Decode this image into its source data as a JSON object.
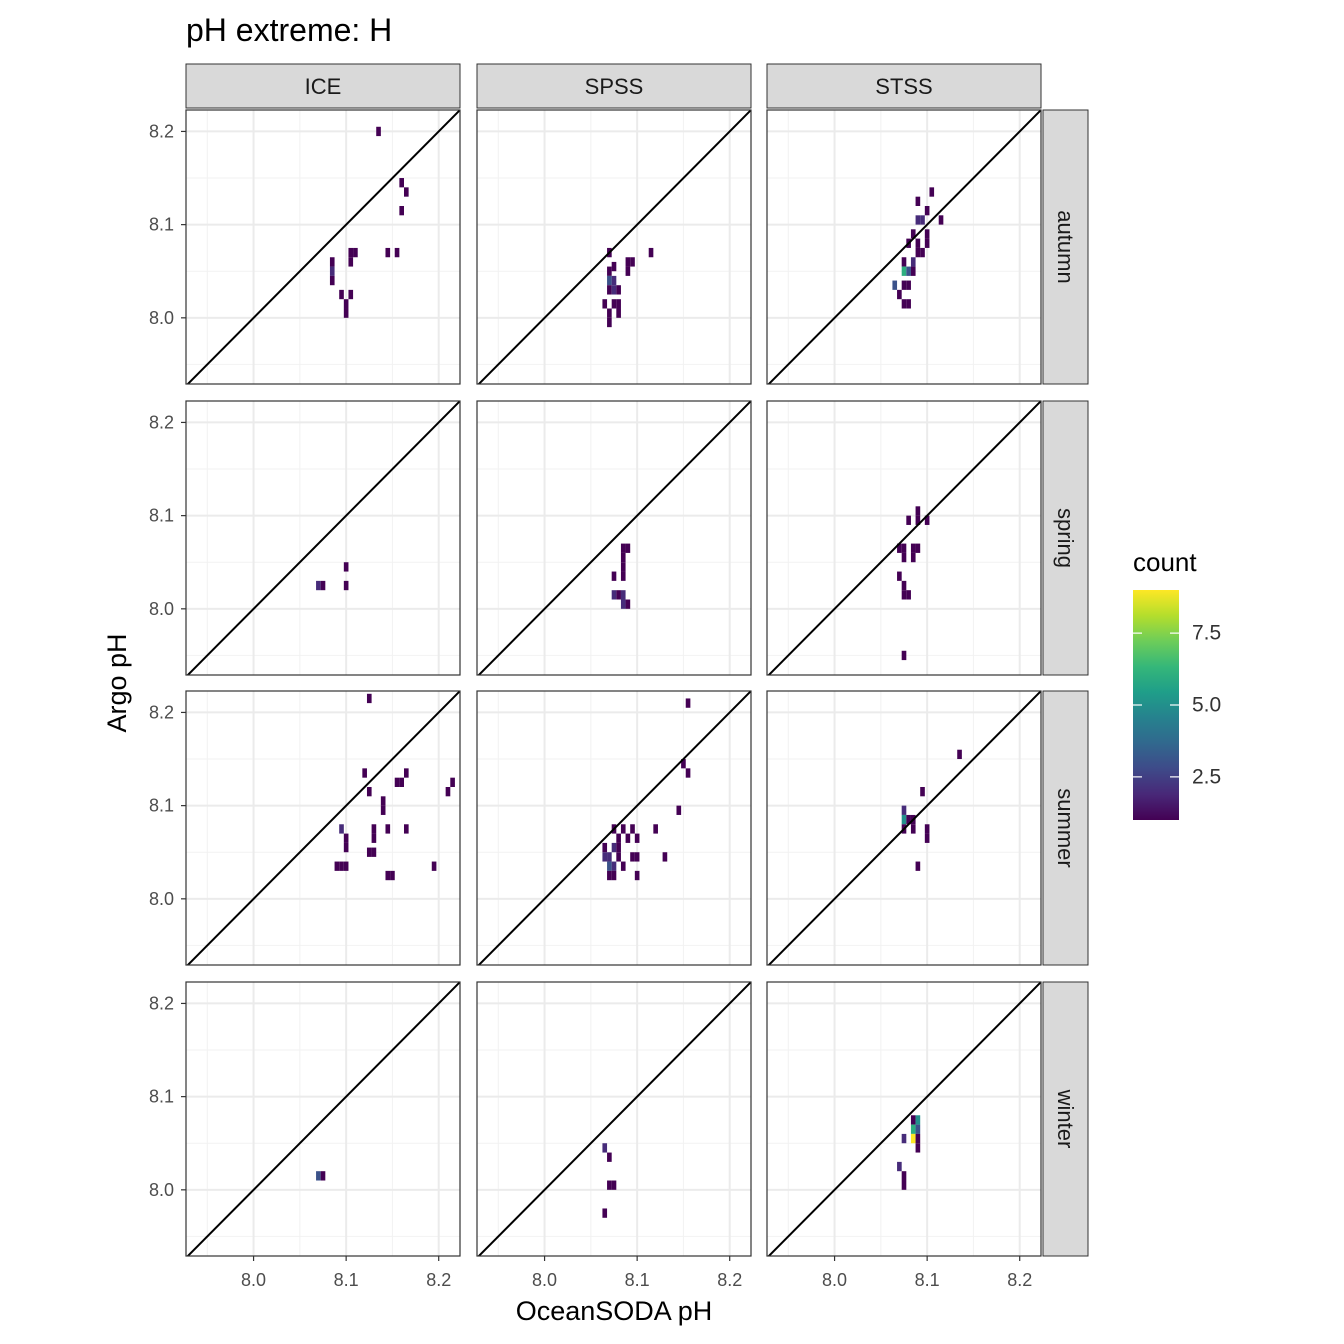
{
  "chart_data": {
    "type": "heatmap",
    "title": "pH extreme: H",
    "xlabel": "OceanSODA pH",
    "ylabel": "Argo pH",
    "xlim": [
      7.927,
      8.223
    ],
    "ylim": [
      7.929,
      8.223
    ],
    "x_ticks": [
      8.0,
      8.1,
      8.2
    ],
    "y_ticks": [
      8.0,
      8.1,
      8.2
    ],
    "x_tick_labels": [
      "8.0",
      "8.1",
      "8.2"
    ],
    "y_tick_labels": [
      "8.0",
      "8.1",
      "8.2"
    ],
    "bin_width": [
      0.005,
      0.01
    ],
    "reference_line": "y = x",
    "columns": [
      "ICE",
      "SPSS",
      "STSS"
    ],
    "rows": [
      "autumn",
      "spring",
      "summer",
      "winter"
    ],
    "legend": {
      "title": "count",
      "min": 1,
      "max": 9,
      "ticks": [
        2.5,
        5.0,
        7.5
      ],
      "tick_labels": [
        "2.5",
        "5.0",
        "7.5"
      ],
      "palette": [
        "#440154",
        "#482878",
        "#3E4A89",
        "#31688E",
        "#26828E",
        "#1F9E89",
        "#35B779",
        "#6DCD59",
        "#B4DE2C",
        "#FDE725"
      ]
    },
    "panels": [
      {
        "column": "ICE",
        "row": "autumn",
        "cells": [
          {
            "x": 8.135,
            "y": 8.2,
            "count": 1
          },
          {
            "x": 8.16,
            "y": 8.145,
            "count": 1
          },
          {
            "x": 8.165,
            "y": 8.135,
            "count": 1
          },
          {
            "x": 8.16,
            "y": 8.115,
            "count": 1
          },
          {
            "x": 8.105,
            "y": 8.07,
            "count": 1
          },
          {
            "x": 8.11,
            "y": 8.07,
            "count": 1
          },
          {
            "x": 8.145,
            "y": 8.07,
            "count": 1
          },
          {
            "x": 8.155,
            "y": 8.07,
            "count": 1
          },
          {
            "x": 8.105,
            "y": 8.06,
            "count": 1
          },
          {
            "x": 8.085,
            "y": 8.06,
            "count": 1
          },
          {
            "x": 8.085,
            "y": 8.05,
            "count": 2
          },
          {
            "x": 8.085,
            "y": 8.04,
            "count": 1
          },
          {
            "x": 8.095,
            "y": 8.025,
            "count": 1
          },
          {
            "x": 8.105,
            "y": 8.025,
            "count": 1
          },
          {
            "x": 8.1,
            "y": 8.015,
            "count": 1
          },
          {
            "x": 8.1,
            "y": 8.005,
            "count": 1
          }
        ]
      },
      {
        "column": "SPSS",
        "row": "autumn",
        "cells": [
          {
            "x": 8.07,
            "y": 8.07,
            "count": 1
          },
          {
            "x": 8.115,
            "y": 8.07,
            "count": 1
          },
          {
            "x": 8.09,
            "y": 8.06,
            "count": 1
          },
          {
            "x": 8.095,
            "y": 8.06,
            "count": 1
          },
          {
            "x": 8.075,
            "y": 8.055,
            "count": 1
          },
          {
            "x": 8.07,
            "y": 8.05,
            "count": 1
          },
          {
            "x": 8.09,
            "y": 8.05,
            "count": 1
          },
          {
            "x": 8.07,
            "y": 8.04,
            "count": 3
          },
          {
            "x": 8.075,
            "y": 8.04,
            "count": 2
          },
          {
            "x": 8.07,
            "y": 8.03,
            "count": 1
          },
          {
            "x": 8.075,
            "y": 8.03,
            "count": 2
          },
          {
            "x": 8.08,
            "y": 8.03,
            "count": 1
          },
          {
            "x": 8.065,
            "y": 8.015,
            "count": 1
          },
          {
            "x": 8.075,
            "y": 8.015,
            "count": 1
          },
          {
            "x": 8.08,
            "y": 8.015,
            "count": 1
          },
          {
            "x": 8.07,
            "y": 8.005,
            "count": 1
          },
          {
            "x": 8.08,
            "y": 8.005,
            "count": 1
          },
          {
            "x": 8.07,
            "y": 7.995,
            "count": 1
          }
        ]
      },
      {
        "column": "STSS",
        "row": "autumn",
        "cells": [
          {
            "x": 8.105,
            "y": 8.135,
            "count": 1
          },
          {
            "x": 8.09,
            "y": 8.125,
            "count": 1
          },
          {
            "x": 8.1,
            "y": 8.115,
            "count": 1
          },
          {
            "x": 8.09,
            "y": 8.105,
            "count": 2
          },
          {
            "x": 8.095,
            "y": 8.105,
            "count": 2
          },
          {
            "x": 8.115,
            "y": 8.105,
            "count": 1
          },
          {
            "x": 8.085,
            "y": 8.09,
            "count": 1
          },
          {
            "x": 8.1,
            "y": 8.09,
            "count": 1
          },
          {
            "x": 8.08,
            "y": 8.08,
            "count": 1
          },
          {
            "x": 8.09,
            "y": 8.08,
            "count": 1
          },
          {
            "x": 8.1,
            "y": 8.08,
            "count": 1
          },
          {
            "x": 8.09,
            "y": 8.07,
            "count": 1
          },
          {
            "x": 8.095,
            "y": 8.07,
            "count": 1
          },
          {
            "x": 8.075,
            "y": 8.06,
            "count": 1
          },
          {
            "x": 8.085,
            "y": 8.06,
            "count": 2
          },
          {
            "x": 8.075,
            "y": 8.05,
            "count": 6
          },
          {
            "x": 8.08,
            "y": 8.05,
            "count": 3
          },
          {
            "x": 8.085,
            "y": 8.05,
            "count": 1
          },
          {
            "x": 8.065,
            "y": 8.035,
            "count": 3
          },
          {
            "x": 8.075,
            "y": 8.035,
            "count": 1
          },
          {
            "x": 8.08,
            "y": 8.035,
            "count": 1
          },
          {
            "x": 8.07,
            "y": 8.025,
            "count": 1
          },
          {
            "x": 8.075,
            "y": 8.015,
            "count": 1
          },
          {
            "x": 8.08,
            "y": 8.015,
            "count": 1
          }
        ]
      },
      {
        "column": "ICE",
        "row": "spring",
        "cells": [
          {
            "x": 8.1,
            "y": 8.045,
            "count": 1
          },
          {
            "x": 8.07,
            "y": 8.025,
            "count": 2
          },
          {
            "x": 8.075,
            "y": 8.025,
            "count": 1
          },
          {
            "x": 8.1,
            "y": 8.025,
            "count": 1
          }
        ]
      },
      {
        "column": "SPSS",
        "row": "spring",
        "cells": [
          {
            "x": 8.085,
            "y": 8.065,
            "count": 1
          },
          {
            "x": 8.09,
            "y": 8.065,
            "count": 1
          },
          {
            "x": 8.085,
            "y": 8.055,
            "count": 1
          },
          {
            "x": 8.085,
            "y": 8.045,
            "count": 1
          },
          {
            "x": 8.075,
            "y": 8.035,
            "count": 1
          },
          {
            "x": 8.085,
            "y": 8.035,
            "count": 1
          },
          {
            "x": 8.075,
            "y": 8.015,
            "count": 2
          },
          {
            "x": 8.08,
            "y": 8.015,
            "count": 1
          },
          {
            "x": 8.085,
            "y": 8.015,
            "count": 2
          },
          {
            "x": 8.085,
            "y": 8.005,
            "count": 2
          },
          {
            "x": 8.09,
            "y": 8.005,
            "count": 1
          }
        ]
      },
      {
        "column": "STSS",
        "row": "spring",
        "cells": [
          {
            "x": 8.09,
            "y": 8.105,
            "count": 1
          },
          {
            "x": 8.08,
            "y": 8.095,
            "count": 1
          },
          {
            "x": 8.09,
            "y": 8.095,
            "count": 1
          },
          {
            "x": 8.1,
            "y": 8.095,
            "count": 1
          },
          {
            "x": 8.07,
            "y": 8.065,
            "count": 1
          },
          {
            "x": 8.075,
            "y": 8.065,
            "count": 1
          },
          {
            "x": 8.085,
            "y": 8.065,
            "count": 1
          },
          {
            "x": 8.09,
            "y": 8.065,
            "count": 1
          },
          {
            "x": 8.075,
            "y": 8.055,
            "count": 1
          },
          {
            "x": 8.085,
            "y": 8.055,
            "count": 1
          },
          {
            "x": 8.07,
            "y": 8.035,
            "count": 1
          },
          {
            "x": 8.075,
            "y": 8.025,
            "count": 1
          },
          {
            "x": 8.075,
            "y": 8.015,
            "count": 1
          },
          {
            "x": 8.08,
            "y": 8.015,
            "count": 1
          },
          {
            "x": 8.075,
            "y": 7.95,
            "count": 1
          }
        ]
      },
      {
        "column": "ICE",
        "row": "summer",
        "cells": [
          {
            "x": 8.125,
            "y": 8.215,
            "count": 1
          },
          {
            "x": 8.12,
            "y": 8.135,
            "count": 1
          },
          {
            "x": 8.155,
            "y": 8.125,
            "count": 1
          },
          {
            "x": 8.16,
            "y": 8.125,
            "count": 1
          },
          {
            "x": 8.165,
            "y": 8.135,
            "count": 1
          },
          {
            "x": 8.215,
            "y": 8.125,
            "count": 1
          },
          {
            "x": 8.21,
            "y": 8.115,
            "count": 1
          },
          {
            "x": 8.125,
            "y": 8.115,
            "count": 1
          },
          {
            "x": 8.14,
            "y": 8.105,
            "count": 1
          },
          {
            "x": 8.14,
            "y": 8.095,
            "count": 1
          },
          {
            "x": 8.095,
            "y": 8.075,
            "count": 2
          },
          {
            "x": 8.13,
            "y": 8.075,
            "count": 1
          },
          {
            "x": 8.145,
            "y": 8.075,
            "count": 1
          },
          {
            "x": 8.165,
            "y": 8.075,
            "count": 1
          },
          {
            "x": 8.1,
            "y": 8.065,
            "count": 1
          },
          {
            "x": 8.13,
            "y": 8.065,
            "count": 1
          },
          {
            "x": 8.1,
            "y": 8.055,
            "count": 1
          },
          {
            "x": 8.125,
            "y": 8.05,
            "count": 1
          },
          {
            "x": 8.13,
            "y": 8.05,
            "count": 1
          },
          {
            "x": 8.09,
            "y": 8.035,
            "count": 1
          },
          {
            "x": 8.095,
            "y": 8.035,
            "count": 1
          },
          {
            "x": 8.1,
            "y": 8.035,
            "count": 1
          },
          {
            "x": 8.195,
            "y": 8.035,
            "count": 1
          },
          {
            "x": 8.145,
            "y": 8.025,
            "count": 1
          },
          {
            "x": 8.15,
            "y": 8.025,
            "count": 1
          }
        ]
      },
      {
        "column": "SPSS",
        "row": "summer",
        "cells": [
          {
            "x": 8.155,
            "y": 8.21,
            "count": 1
          },
          {
            "x": 8.15,
            "y": 8.145,
            "count": 1
          },
          {
            "x": 8.155,
            "y": 8.135,
            "count": 1
          },
          {
            "x": 8.145,
            "y": 8.095,
            "count": 1
          },
          {
            "x": 8.075,
            "y": 8.075,
            "count": 1
          },
          {
            "x": 8.085,
            "y": 8.075,
            "count": 1
          },
          {
            "x": 8.095,
            "y": 8.075,
            "count": 1
          },
          {
            "x": 8.12,
            "y": 8.075,
            "count": 1
          },
          {
            "x": 8.08,
            "y": 8.065,
            "count": 1
          },
          {
            "x": 8.09,
            "y": 8.065,
            "count": 1
          },
          {
            "x": 8.1,
            "y": 8.065,
            "count": 1
          },
          {
            "x": 8.065,
            "y": 8.055,
            "count": 1
          },
          {
            "x": 8.075,
            "y": 8.055,
            "count": 2
          },
          {
            "x": 8.08,
            "y": 8.055,
            "count": 1
          },
          {
            "x": 8.065,
            "y": 8.045,
            "count": 2
          },
          {
            "x": 8.07,
            "y": 8.045,
            "count": 2
          },
          {
            "x": 8.08,
            "y": 8.045,
            "count": 1
          },
          {
            "x": 8.095,
            "y": 8.045,
            "count": 1
          },
          {
            "x": 8.1,
            "y": 8.045,
            "count": 1
          },
          {
            "x": 8.13,
            "y": 8.045,
            "count": 1
          },
          {
            "x": 8.07,
            "y": 8.035,
            "count": 3
          },
          {
            "x": 8.075,
            "y": 8.035,
            "count": 2
          },
          {
            "x": 8.085,
            "y": 8.035,
            "count": 1
          },
          {
            "x": 8.07,
            "y": 8.025,
            "count": 1
          },
          {
            "x": 8.075,
            "y": 8.025,
            "count": 1
          },
          {
            "x": 8.1,
            "y": 8.025,
            "count": 1
          }
        ]
      },
      {
        "column": "STSS",
        "row": "summer",
        "cells": [
          {
            "x": 8.135,
            "y": 8.155,
            "count": 1
          },
          {
            "x": 8.095,
            "y": 8.115,
            "count": 1
          },
          {
            "x": 8.075,
            "y": 8.095,
            "count": 2
          },
          {
            "x": 8.075,
            "y": 8.085,
            "count": 5
          },
          {
            "x": 8.08,
            "y": 8.085,
            "count": 1
          },
          {
            "x": 8.085,
            "y": 8.085,
            "count": 1
          },
          {
            "x": 8.075,
            "y": 8.075,
            "count": 1
          },
          {
            "x": 8.085,
            "y": 8.075,
            "count": 1
          },
          {
            "x": 8.1,
            "y": 8.075,
            "count": 1
          },
          {
            "x": 8.1,
            "y": 8.065,
            "count": 1
          },
          {
            "x": 8.09,
            "y": 8.035,
            "count": 1
          }
        ]
      },
      {
        "column": "ICE",
        "row": "winter",
        "cells": [
          {
            "x": 8.07,
            "y": 8.015,
            "count": 3
          },
          {
            "x": 8.075,
            "y": 8.015,
            "count": 1
          }
        ]
      },
      {
        "column": "SPSS",
        "row": "winter",
        "cells": [
          {
            "x": 8.065,
            "y": 8.045,
            "count": 2
          },
          {
            "x": 8.07,
            "y": 8.035,
            "count": 1
          },
          {
            "x": 8.07,
            "y": 8.005,
            "count": 1
          },
          {
            "x": 8.075,
            "y": 8.005,
            "count": 1
          },
          {
            "x": 8.065,
            "y": 7.975,
            "count": 1
          }
        ]
      },
      {
        "column": "STSS",
        "row": "winter",
        "cells": [
          {
            "x": 8.085,
            "y": 8.075,
            "count": 1
          },
          {
            "x": 8.085,
            "y": 8.065,
            "count": 6
          },
          {
            "x": 8.09,
            "y": 8.075,
            "count": 5
          },
          {
            "x": 8.09,
            "y": 8.065,
            "count": 3
          },
          {
            "x": 8.075,
            "y": 8.055,
            "count": 2
          },
          {
            "x": 8.085,
            "y": 8.055,
            "count": 9
          },
          {
            "x": 8.09,
            "y": 8.055,
            "count": 1
          },
          {
            "x": 8.09,
            "y": 8.045,
            "count": 1
          },
          {
            "x": 8.07,
            "y": 8.025,
            "count": 2
          },
          {
            "x": 8.075,
            "y": 8.015,
            "count": 1
          },
          {
            "x": 8.075,
            "y": 8.005,
            "count": 1
          }
        ]
      }
    ]
  }
}
